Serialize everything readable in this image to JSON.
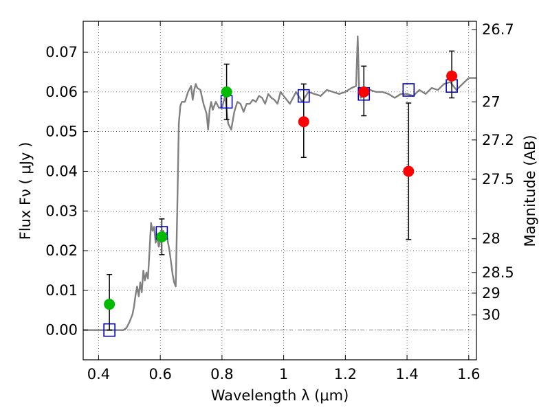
{
  "chart_data": {
    "type": "scatter",
    "xlabel": "Wavelength  λ (μm)",
    "ylabel": "Flux  Fν  ( μJy )",
    "y2label": "Magnitude (AB)",
    "xlim": [
      0.35,
      1.625
    ],
    "ylim": [
      -0.0075,
      0.0778
    ],
    "grid": true,
    "x_ticks": [
      0.4,
      0.6,
      0.8,
      1.0,
      1.2,
      1.4,
      1.6
    ],
    "x_tick_labels": [
      "0.4",
      "0.6",
      "0.8",
      "1",
      "1.2",
      "1.4",
      "1.6"
    ],
    "y_ticks": [
      0.0,
      0.01,
      0.02,
      0.03,
      0.04,
      0.05,
      0.06,
      0.07
    ],
    "y_tick_labels": [
      "0.00",
      "0.01",
      "0.02",
      "0.03",
      "0.04",
      "0.05",
      "0.06",
      "0.07"
    ],
    "mag_ticks": [
      {
        "flux": 0.0757,
        "label": "26.7"
      },
      {
        "flux": 0.0575,
        "label": "27"
      },
      {
        "flux": 0.0479,
        "label": "27.2"
      },
      {
        "flux": 0.038,
        "label": "27.5"
      },
      {
        "flux": 0.023,
        "label": "28"
      },
      {
        "flux": 0.0145,
        "label": "28.5"
      },
      {
        "flux": 0.0093,
        "label": "29"
      },
      {
        "flux": 0.0038,
        "label": "30"
      }
    ],
    "colors": {
      "model": "#808080",
      "green_points": "#00bb00",
      "red_points": "#ff0000",
      "model_boxes": "#0000cc",
      "error_bars": "#000000"
    },
    "series": [
      {
        "kind": "line",
        "x": [
          0.35,
          0.48,
          0.49,
          0.5,
          0.51,
          0.515,
          0.52,
          0.525,
          0.53,
          0.535,
          0.54,
          0.545,
          0.55,
          0.555,
          0.56,
          0.565,
          0.57,
          0.575,
          0.58,
          0.585,
          0.59,
          0.595,
          0.6,
          0.605,
          0.61,
          0.615,
          0.62,
          0.625,
          0.63,
          0.64,
          0.645,
          0.65,
          0.655,
          0.66,
          0.665,
          0.67,
          0.68,
          0.69,
          0.7,
          0.705,
          0.71,
          0.715,
          0.72,
          0.73,
          0.74,
          0.75,
          0.755,
          0.76,
          0.765,
          0.77,
          0.78,
          0.79,
          0.8,
          0.81,
          0.82,
          0.83,
          0.84,
          0.85,
          0.86,
          0.87,
          0.88,
          0.89,
          0.9,
          0.91,
          0.92,
          0.93,
          0.94,
          0.95,
          0.96,
          0.97,
          0.98,
          0.99,
          1.0,
          1.02,
          1.04,
          1.06,
          1.08,
          1.1,
          1.12,
          1.14,
          1.16,
          1.18,
          1.2,
          1.22,
          1.235,
          1.24,
          1.245,
          1.25,
          1.26,
          1.28,
          1.3,
          1.32,
          1.34,
          1.36,
          1.38,
          1.4,
          1.42,
          1.44,
          1.46,
          1.48,
          1.5,
          1.52,
          1.54,
          1.56,
          1.58,
          1.6,
          1.625
        ],
        "y": [
          0.0,
          0.0,
          0.0005,
          0.002,
          0.004,
          0.006,
          0.009,
          0.011,
          0.0085,
          0.012,
          0.0095,
          0.015,
          0.0125,
          0.0145,
          0.013,
          0.02,
          0.027,
          0.025,
          0.026,
          0.022,
          0.0235,
          0.021,
          0.0225,
          0.0245,
          0.025,
          0.0235,
          0.0245,
          0.022,
          0.02,
          0.014,
          0.012,
          0.011,
          0.03,
          0.052,
          0.0565,
          0.0575,
          0.0575,
          0.06,
          0.0615,
          0.058,
          0.0605,
          0.062,
          0.061,
          0.0605,
          0.057,
          0.0545,
          0.0505,
          0.0555,
          0.0575,
          0.0555,
          0.0575,
          0.056,
          0.056,
          0.059,
          0.052,
          0.0505,
          0.055,
          0.0575,
          0.057,
          0.055,
          0.057,
          0.057,
          0.058,
          0.0575,
          0.059,
          0.0585,
          0.057,
          0.0595,
          0.0585,
          0.058,
          0.057,
          0.06,
          0.059,
          0.057,
          0.06,
          0.0575,
          0.06,
          0.0595,
          0.059,
          0.0605,
          0.06,
          0.0595,
          0.06,
          0.061,
          0.0615,
          0.074,
          0.06,
          0.0585,
          0.059,
          0.0605,
          0.06,
          0.06,
          0.0595,
          0.0585,
          0.0595,
          0.0595,
          0.059,
          0.0605,
          0.0595,
          0.061,
          0.0605,
          0.062,
          0.0625,
          0.0605,
          0.062,
          0.0635,
          0.0635
        ]
      },
      {
        "kind": "points",
        "x": [
          0.435,
          0.605,
          0.815
        ],
        "y": [
          0.0065,
          0.0235,
          0.06
        ],
        "yerr_low": [
          0.0065,
          0.0045,
          0.007
        ],
        "yerr_high": [
          0.0075,
          0.0045,
          0.007
        ]
      },
      {
        "kind": "points",
        "x": [
          1.065,
          1.26,
          1.405,
          1.545
        ],
        "y": [
          0.0525,
          0.06,
          0.04,
          0.064
        ],
        "yerr_low": [
          0.009,
          0.006,
          0.0172,
          0.0055
        ],
        "yerr_high": [
          0.0095,
          0.0065,
          0.0172,
          0.0063
        ]
      },
      {
        "kind": "boxes",
        "x": [
          0.435,
          0.605,
          0.815,
          1.065,
          1.26,
          1.405,
          1.545
        ],
        "y": [
          0.0,
          0.0245,
          0.0575,
          0.059,
          0.0595,
          0.0605,
          0.0615
        ]
      }
    ]
  }
}
